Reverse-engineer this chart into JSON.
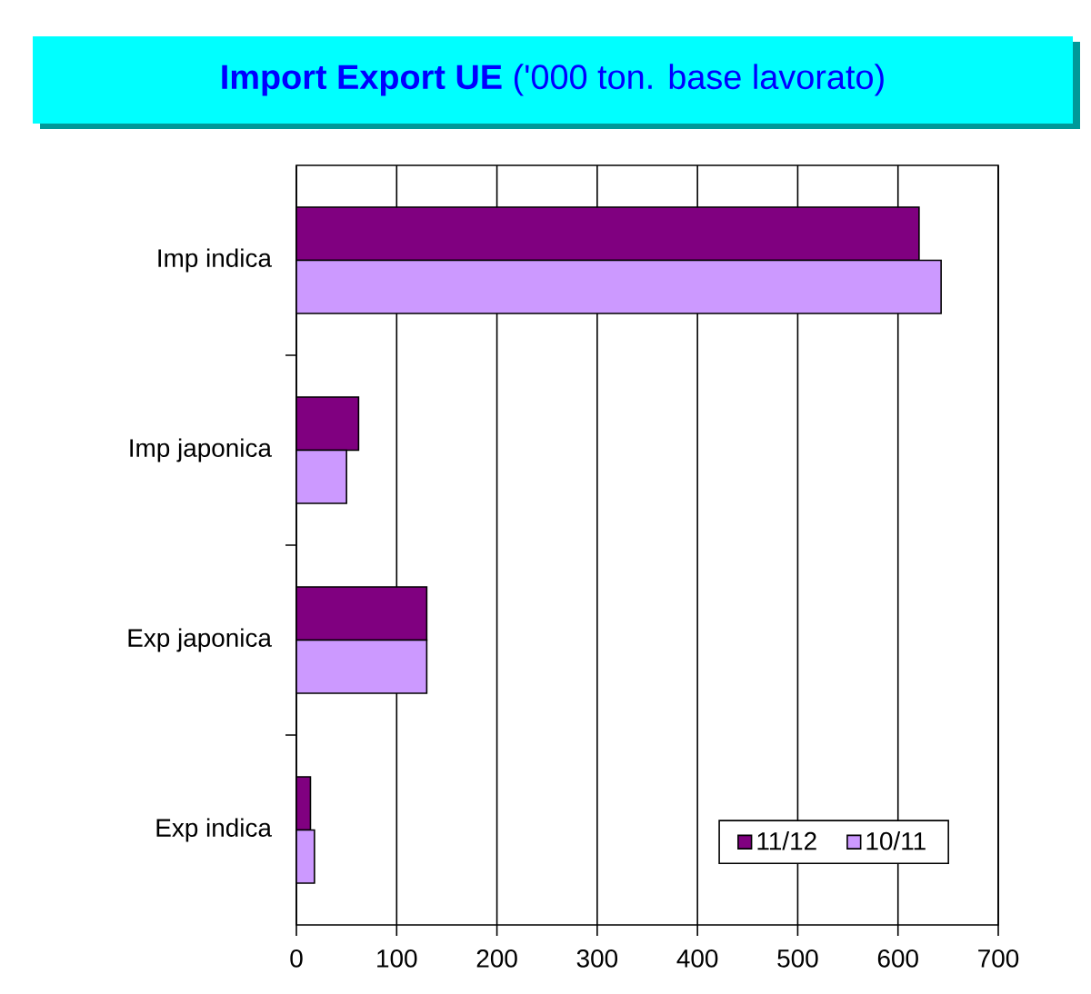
{
  "chart_data": {
    "type": "bar",
    "orientation": "horizontal",
    "title": "**Import** **Export** **UE** ('000 ton. base lavorato)",
    "categories": [
      "Imp indica",
      "Imp japonica",
      "Exp japonica",
      "Exp indica"
    ],
    "series": [
      {
        "name": "11/12",
        "color": "#800080",
        "values": [
          621,
          62,
          130,
          14
        ]
      },
      {
        "name": "10/11",
        "color": "#cc99ff",
        "values": [
          643,
          50,
          130,
          18
        ]
      }
    ],
    "xlim": [
      0,
      700
    ],
    "xticks": [
      0,
      100,
      200,
      300,
      400,
      500,
      600,
      700
    ],
    "grid": "x",
    "legend": "bottom right"
  }
}
